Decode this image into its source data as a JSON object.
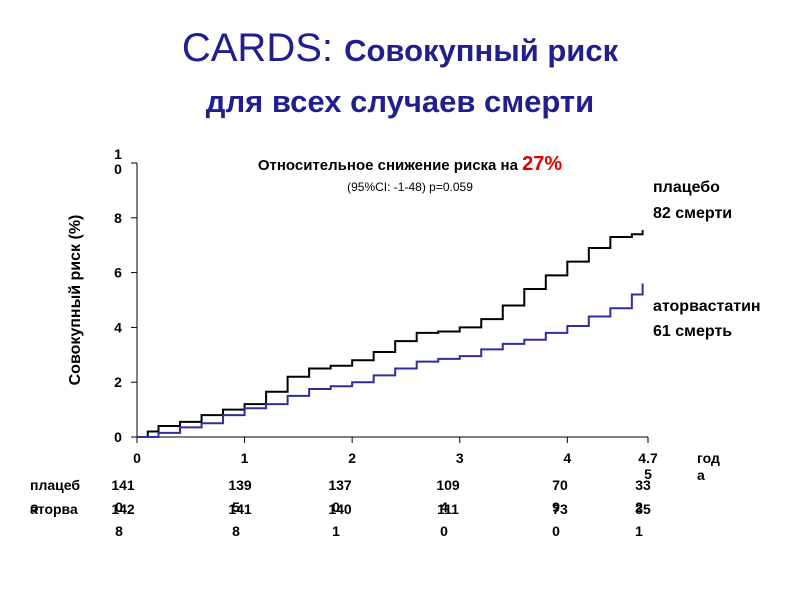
{
  "header": {
    "title_prefix": "CARDS: ",
    "title_rest": "Совокупный риск",
    "title_line2": "для всех случаев смерти"
  },
  "chart_data": {
    "type": "line",
    "ylabel": "Совокупный риск (%)",
    "xlabel": "года",
    "xlim": [
      0,
      4.75
    ],
    "ylim": [
      0,
      10
    ],
    "x_ticks": [
      "0",
      "1",
      "2",
      "3",
      "4",
      "4.75"
    ],
    "y_ticks": [
      "0",
      "2",
      "4",
      "6",
      "8",
      "10"
    ],
    "annotation": {
      "text": "Относительное снижение риска на ",
      "highlight": "27%",
      "highlight_color": "#e00000",
      "ci": "(95%CI: -1-48) p=0.059"
    },
    "series": [
      {
        "name": "плацебо",
        "label_line2": "82 смерти",
        "color": "#000000",
        "points": [
          [
            0,
            0
          ],
          [
            0.1,
            0.2
          ],
          [
            0.2,
            0.4
          ],
          [
            0.4,
            0.55
          ],
          [
            0.6,
            0.8
          ],
          [
            0.8,
            1.0
          ],
          [
            1.0,
            1.2
          ],
          [
            1.2,
            1.65
          ],
          [
            1.4,
            2.2
          ],
          [
            1.6,
            2.5
          ],
          [
            1.8,
            2.6
          ],
          [
            2.0,
            2.8
          ],
          [
            2.2,
            3.1
          ],
          [
            2.4,
            3.5
          ],
          [
            2.6,
            3.8
          ],
          [
            2.8,
            3.85
          ],
          [
            3.0,
            4.0
          ],
          [
            3.2,
            4.3
          ],
          [
            3.4,
            4.8
          ],
          [
            3.6,
            5.4
          ],
          [
            3.8,
            5.9
          ],
          [
            4.0,
            6.4
          ],
          [
            4.2,
            6.9
          ],
          [
            4.4,
            7.3
          ],
          [
            4.6,
            7.4
          ],
          [
            4.7,
            7.55
          ]
        ]
      },
      {
        "name": "аторвастатин",
        "label_line2": "61 смерть",
        "color": "#2e2e9e",
        "points": [
          [
            0,
            0
          ],
          [
            0.2,
            0.15
          ],
          [
            0.4,
            0.35
          ],
          [
            0.6,
            0.5
          ],
          [
            0.8,
            0.8
          ],
          [
            1.0,
            1.05
          ],
          [
            1.2,
            1.2
          ],
          [
            1.4,
            1.5
          ],
          [
            1.6,
            1.75
          ],
          [
            1.8,
            1.85
          ],
          [
            2.0,
            2.0
          ],
          [
            2.2,
            2.25
          ],
          [
            2.4,
            2.5
          ],
          [
            2.6,
            2.75
          ],
          [
            2.8,
            2.85
          ],
          [
            3.0,
            2.95
          ],
          [
            3.2,
            3.2
          ],
          [
            3.4,
            3.4
          ],
          [
            3.6,
            3.55
          ],
          [
            3.8,
            3.8
          ],
          [
            4.0,
            4.05
          ],
          [
            4.2,
            4.4
          ],
          [
            4.4,
            4.7
          ],
          [
            4.6,
            5.2
          ],
          [
            4.7,
            5.6
          ]
        ]
      }
    ]
  },
  "at_risk": {
    "rows": [
      {
        "label": "плацебо",
        "values": [
          "1410",
          "1395",
          "1370",
          "1094",
          "709",
          "332"
        ]
      },
      {
        "label": "аторва",
        "values": [
          "1428",
          "1418",
          "1401",
          "1110",
          "730",
          "351"
        ]
      }
    ]
  }
}
